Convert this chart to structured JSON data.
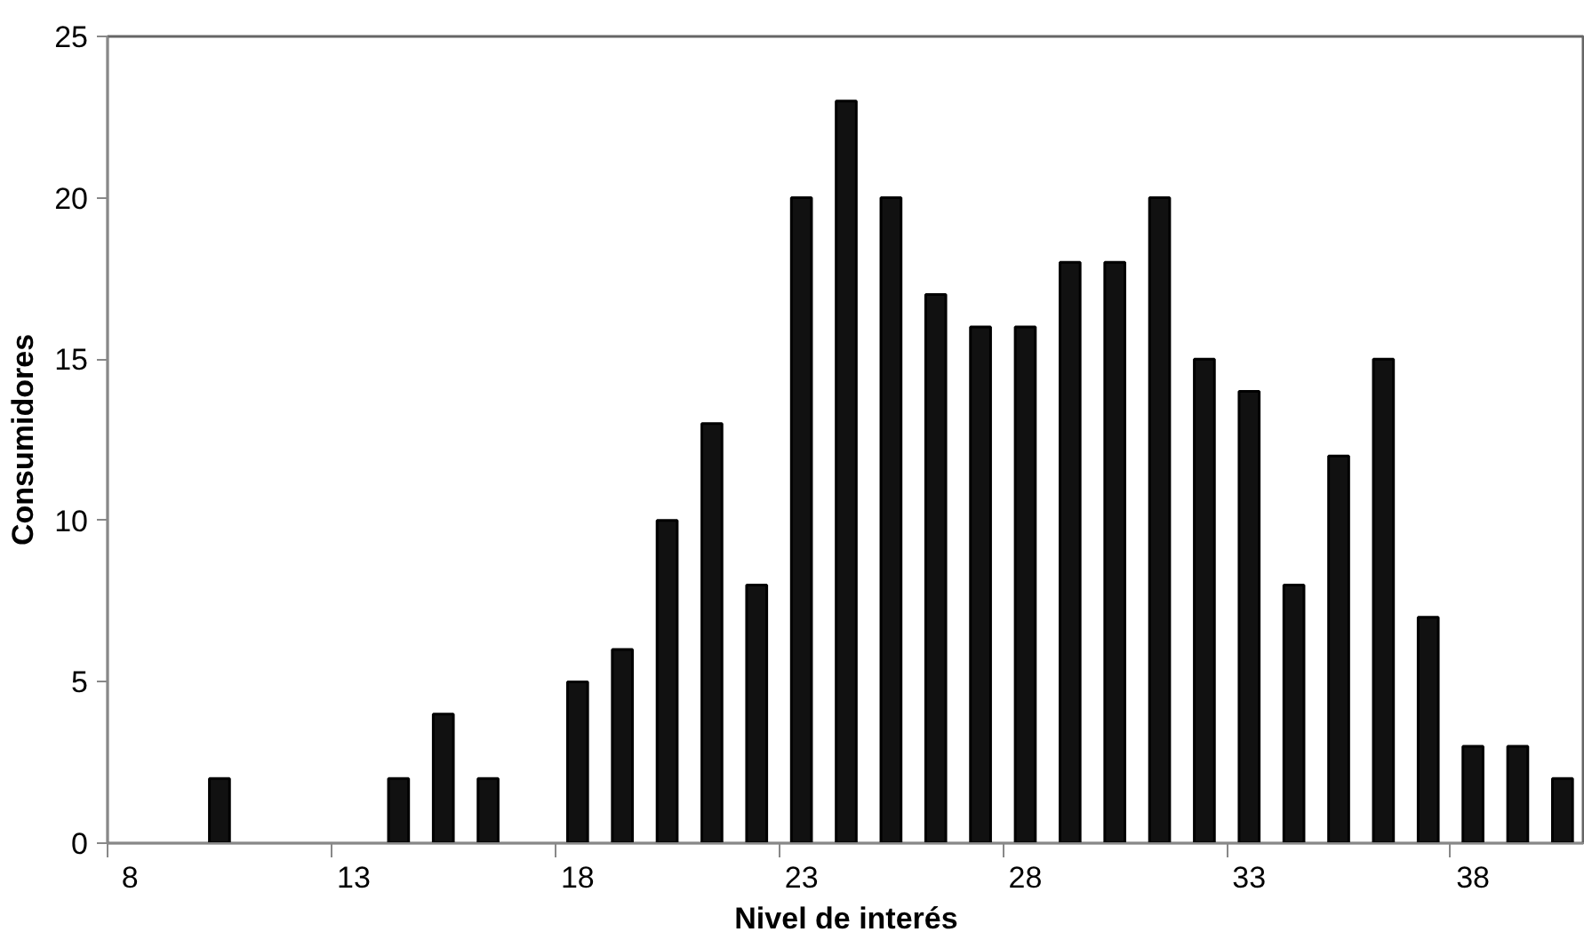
{
  "chart_data": {
    "type": "bar",
    "xlabel": "Nivel de interés",
    "ylabel": "Consumidores",
    "categories": [
      "8",
      null,
      null,
      null,
      null,
      "13",
      null,
      null,
      null,
      null,
      "18",
      null,
      null,
      null,
      null,
      "23",
      null,
      null,
      null,
      null,
      "28",
      null,
      null,
      null,
      null,
      "33",
      null,
      null,
      null,
      null,
      "38",
      null,
      null
    ],
    "values": [
      null,
      null,
      2,
      null,
      null,
      null,
      2,
      4,
      2,
      null,
      5,
      6,
      10,
      13,
      8,
      20,
      23,
      20,
      17,
      16,
      16,
      18,
      18,
      20,
      15,
      14,
      8,
      12,
      15,
      7,
      3,
      3,
      2
    ],
    "color": "#111111",
    "ylim": [
      0,
      25
    ],
    "yticks": [
      0,
      5,
      10,
      15,
      20,
      25
    ],
    "grid": false
  }
}
